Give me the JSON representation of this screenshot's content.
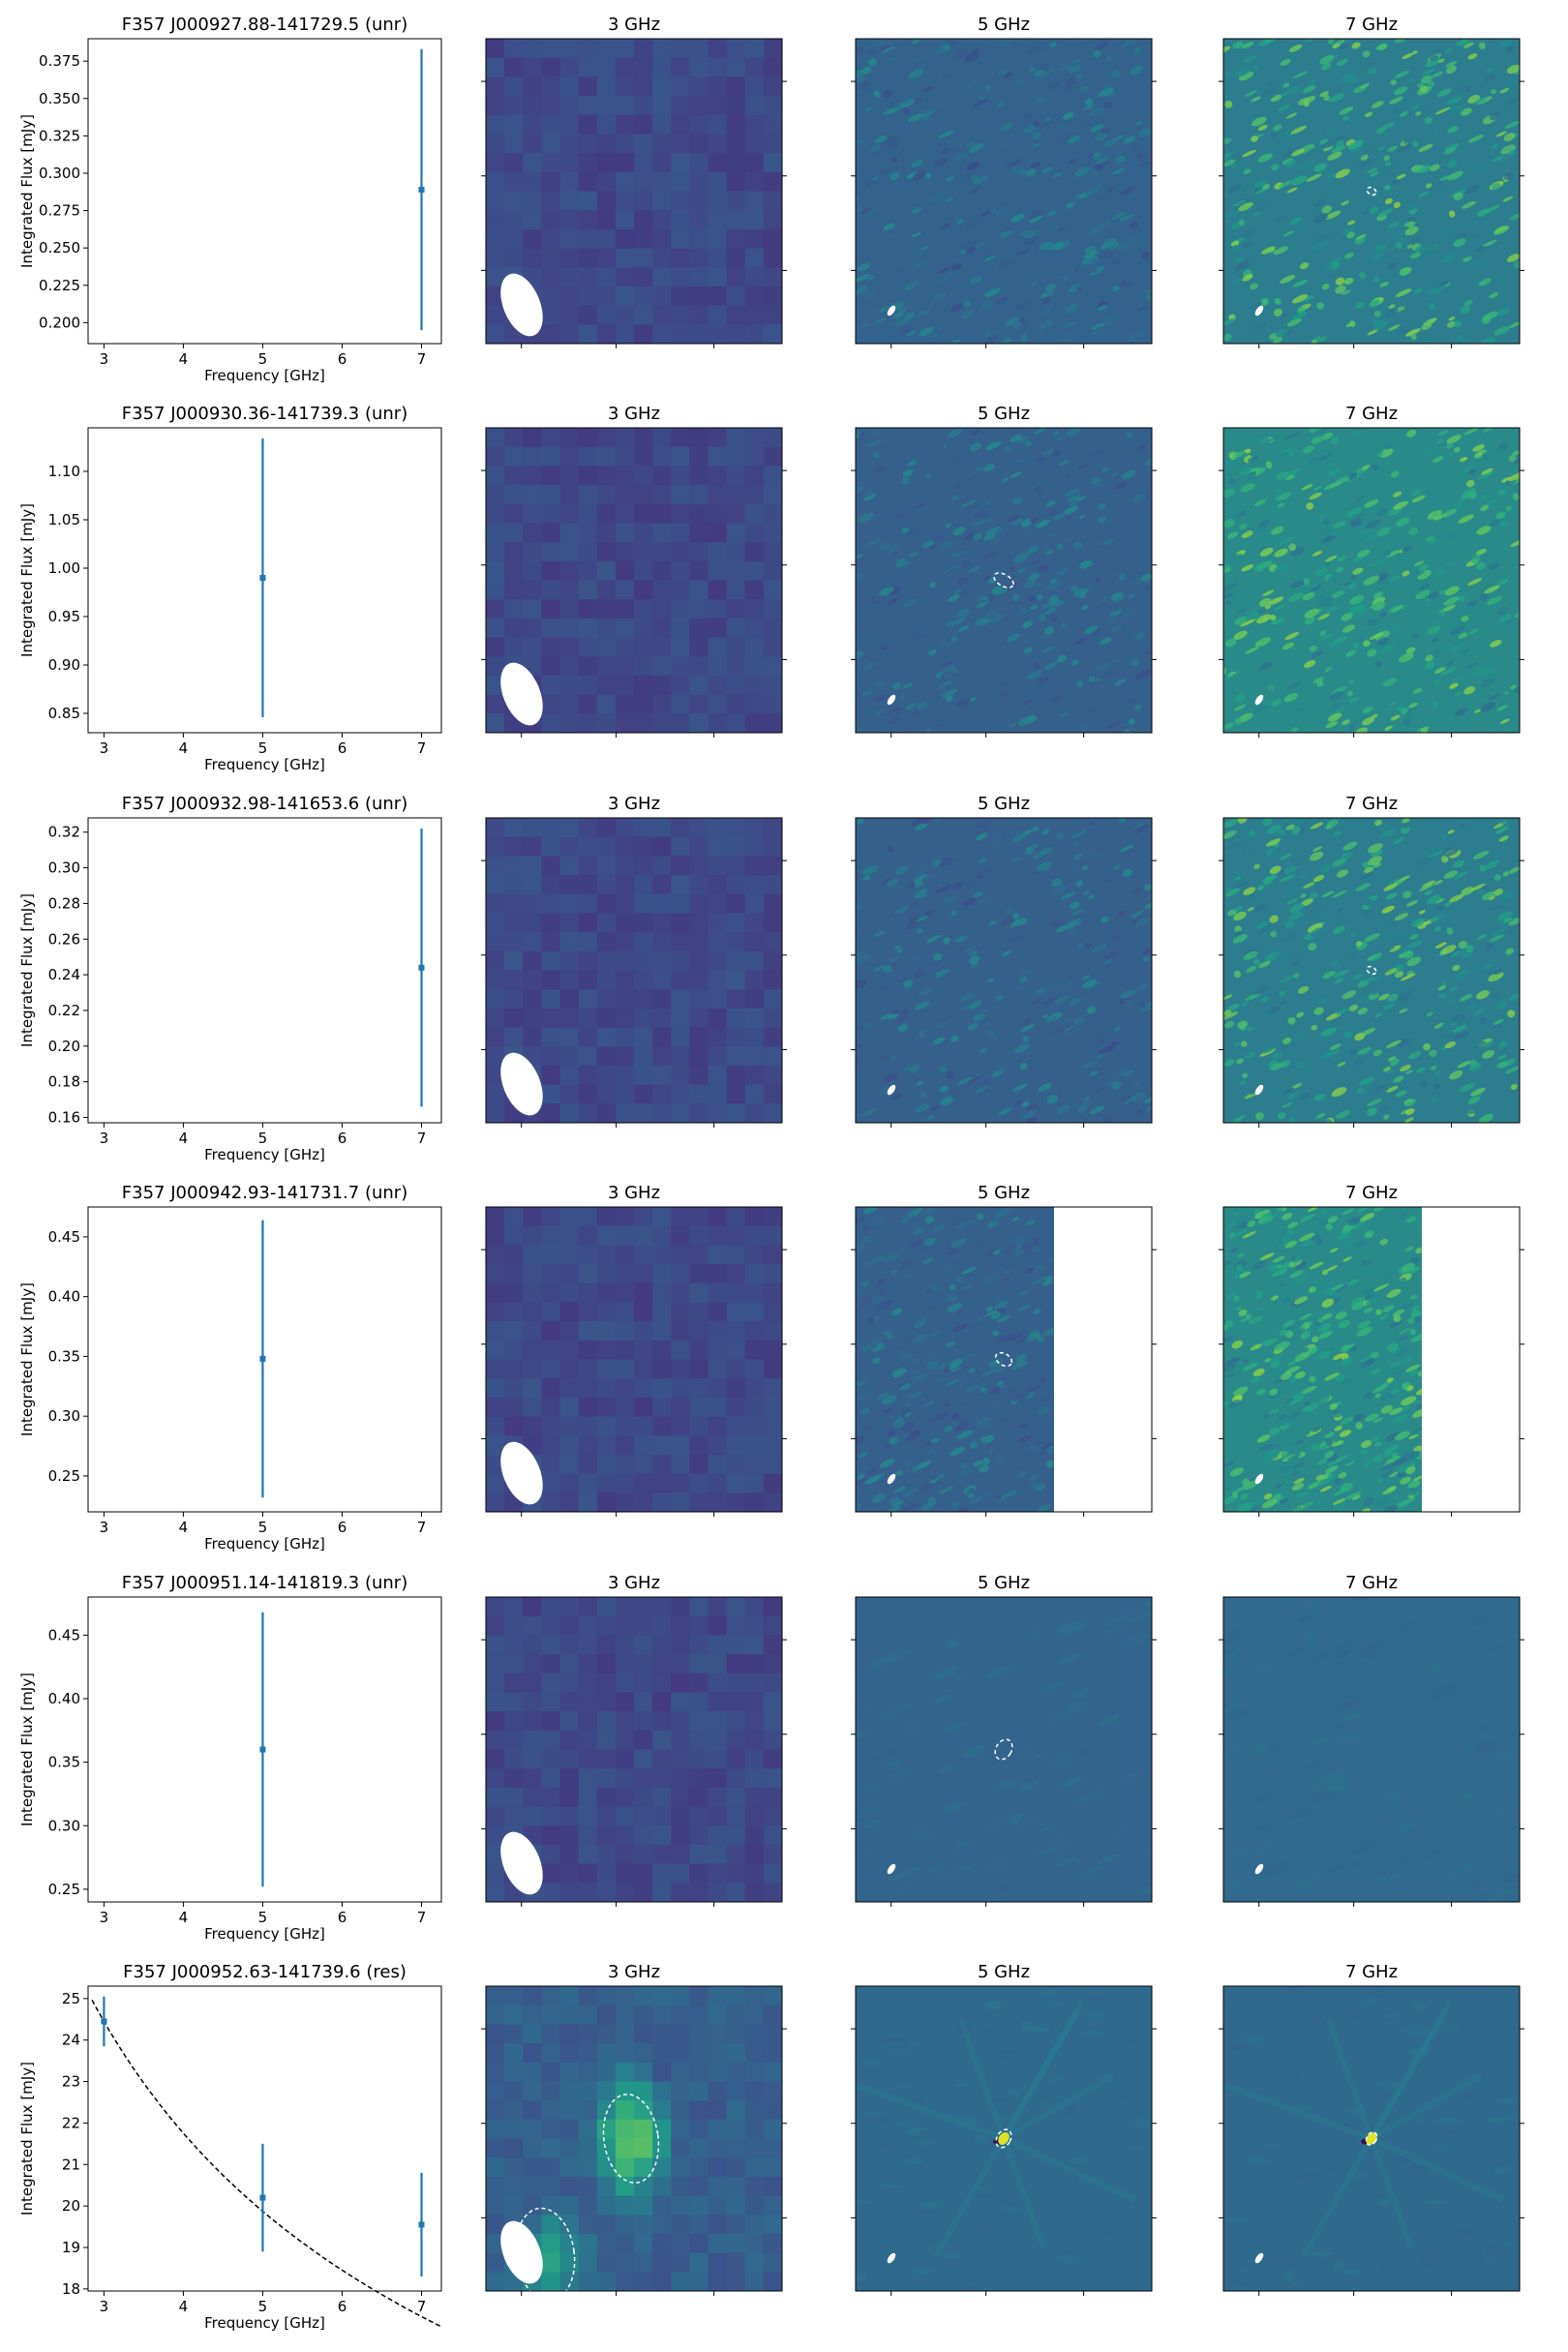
{
  "chart_data": [
    {
      "type": "scatter",
      "title": "F357 J000927.88-141729.5 (unr)",
      "xlabel": "Frequency [GHz]",
      "ylabel": "Integrated Flux [mJy]",
      "xlim": [
        2.8,
        7.25
      ],
      "ylim": [
        0.186,
        0.39
      ],
      "xticks": [
        3,
        4,
        5,
        6,
        7
      ],
      "yticks": [
        0.2,
        0.225,
        0.25,
        0.275,
        0.3,
        0.325,
        0.35,
        0.375
      ],
      "ytick_labels": [
        "0.200",
        "0.225",
        "0.250",
        "0.275",
        "0.300",
        "0.325",
        "0.350",
        "0.375"
      ],
      "points": [
        {
          "x": 7,
          "y": 0.289,
          "yerr_low": 0.195,
          "yerr_high": 0.383
        }
      ],
      "fit": null,
      "images": [
        {
          "title": "3 GHz",
          "style": "blocky",
          "base": "#43508a",
          "clipped": false,
          "ellipses": []
        },
        {
          "title": "5 GHz",
          "style": "speckle",
          "base": "#33628d",
          "clipped": false,
          "ellipses": []
        },
        {
          "title": "7 GHz",
          "style": "speckle-bright",
          "base": "#2c7e8e",
          "clipped": false,
          "ellipses": [
            {
              "fx": 0.5,
              "fy": 0.5,
              "rx": 5,
              "ry": 3.5
            }
          ]
        }
      ]
    },
    {
      "type": "scatter",
      "title": "F357 J000930.36-141739.3 (unr)",
      "xlabel": "Frequency [GHz]",
      "ylabel": "Integrated Flux [mJy]",
      "xlim": [
        2.8,
        7.25
      ],
      "ylim": [
        0.83,
        1.145
      ],
      "xticks": [
        3,
        4,
        5,
        6,
        7
      ],
      "yticks": [
        0.85,
        0.9,
        0.95,
        1.0,
        1.05,
        1.1
      ],
      "ytick_labels": [
        "0.85",
        "0.90",
        "0.95",
        "1.00",
        "1.05",
        "1.10"
      ],
      "points": [
        {
          "x": 5,
          "y": 0.99,
          "yerr_low": 0.846,
          "yerr_high": 1.134
        }
      ],
      "fit": null,
      "images": [
        {
          "title": "3 GHz",
          "style": "blocky",
          "base": "#46407f",
          "clipped": false,
          "ellipses": []
        },
        {
          "title": "5 GHz",
          "style": "speckle",
          "base": "#35608c",
          "clipped": false,
          "ellipses": [
            {
              "fx": 0.5,
              "fy": 0.5,
              "rx": 11,
              "ry": 6
            }
          ]
        },
        {
          "title": "7 GHz",
          "style": "speckle-bright",
          "base": "#2a8a8a",
          "clipped": false,
          "ellipses": []
        }
      ]
    },
    {
      "type": "scatter",
      "title": "F357 J000932.98-141653.6 (unr)",
      "xlabel": "Frequency [GHz]",
      "ylabel": "Integrated Flux [mJy]",
      "xlim": [
        2.8,
        7.25
      ],
      "ylim": [
        0.157,
        0.328
      ],
      "xticks": [
        3,
        4,
        5,
        6,
        7
      ],
      "yticks": [
        0.16,
        0.18,
        0.2,
        0.22,
        0.24,
        0.26,
        0.28,
        0.3,
        0.32
      ],
      "ytick_labels": [
        "0.16",
        "0.18",
        "0.20",
        "0.22",
        "0.24",
        "0.26",
        "0.28",
        "0.30",
        "0.32"
      ],
      "points": [
        {
          "x": 7,
          "y": 0.244,
          "yerr_low": 0.166,
          "yerr_high": 0.322
        }
      ],
      "fit": null,
      "images": [
        {
          "title": "3 GHz",
          "style": "blocky",
          "base": "#3f4d88",
          "clipped": false,
          "ellipses": []
        },
        {
          "title": "5 GHz",
          "style": "speckle",
          "base": "#35608c",
          "clipped": false,
          "ellipses": []
        },
        {
          "title": "7 GHz",
          "style": "speckle-bright",
          "base": "#2c7e8e",
          "clipped": false,
          "ellipses": [
            {
              "fx": 0.5,
              "fy": 0.5,
              "rx": 5,
              "ry": 3.5
            }
          ]
        }
      ]
    },
    {
      "type": "scatter",
      "title": "F357 J000942.93-141731.7 (unr)",
      "xlabel": "Frequency [GHz]",
      "ylabel": "Integrated Flux [mJy]",
      "xlim": [
        2.8,
        7.25
      ],
      "ylim": [
        0.22,
        0.475
      ],
      "xticks": [
        3,
        4,
        5,
        6,
        7
      ],
      "yticks": [
        0.25,
        0.3,
        0.35,
        0.4,
        0.45
      ],
      "ytick_labels": [
        "0.25",
        "0.30",
        "0.35",
        "0.40",
        "0.45"
      ],
      "points": [
        {
          "x": 5,
          "y": 0.348,
          "yerr_low": 0.232,
          "yerr_high": 0.464
        }
      ],
      "fit": null,
      "images": [
        {
          "title": "3 GHz",
          "style": "blocky",
          "base": "#44417f",
          "clipped": false,
          "ellipses": []
        },
        {
          "title": "5 GHz",
          "style": "speckle",
          "base": "#36608c",
          "clipped": true,
          "ellipses": [
            {
              "fx": 0.5,
              "fy": 0.5,
              "rx": 9,
              "ry": 6
            }
          ]
        },
        {
          "title": "7 GHz",
          "style": "speckle-bright",
          "base": "#2a8a8a",
          "clipped": true,
          "ellipses": []
        }
      ]
    },
    {
      "type": "scatter",
      "title": "F357 J000951.14-141819.3 (unr)",
      "xlabel": "Frequency [GHz]",
      "ylabel": "Integrated Flux [mJy]",
      "xlim": [
        2.8,
        7.25
      ],
      "ylim": [
        0.24,
        0.48
      ],
      "xticks": [
        3,
        4,
        5,
        6,
        7
      ],
      "yticks": [
        0.25,
        0.3,
        0.35,
        0.4,
        0.45
      ],
      "ytick_labels": [
        "0.25",
        "0.30",
        "0.35",
        "0.40",
        "0.45"
      ],
      "points": [
        {
          "x": 5,
          "y": 0.36,
          "yerr_low": 0.252,
          "yerr_high": 0.468
        }
      ],
      "fit": null,
      "images": [
        {
          "title": "3 GHz",
          "style": "blocky",
          "base": "#45417f",
          "clipped": false,
          "ellipses": []
        },
        {
          "title": "5 GHz",
          "style": "smooth",
          "base": "#32648d",
          "clipped": false,
          "ellipses": [
            {
              "fx": 0.5,
              "fy": 0.5,
              "rx": 8,
              "ry": 11
            }
          ]
        },
        {
          "title": "7 GHz",
          "style": "smooth",
          "base": "#316a8e",
          "clipped": false,
          "ellipses": []
        }
      ]
    },
    {
      "type": "scatter",
      "title": "F357 J000952.63-141739.6 (res)",
      "xlabel": "Frequency [GHz]",
      "ylabel": "Integrated Flux [mJy]",
      "xlim": [
        2.8,
        7.25
      ],
      "ylim": [
        17.95,
        25.3
      ],
      "xticks": [
        3,
        4,
        5,
        6,
        7
      ],
      "yticks": [
        18,
        19,
        20,
        21,
        22,
        23,
        24,
        25
      ],
      "ytick_labels": [
        "18",
        "19",
        "20",
        "21",
        "22",
        "23",
        "24",
        "25"
      ],
      "points": [
        {
          "x": 3,
          "y": 24.45,
          "yerr_low": 23.85,
          "yerr_high": 25.05
        },
        {
          "x": 5,
          "y": 20.2,
          "yerr_low": 18.9,
          "yerr_high": 21.5
        },
        {
          "x": 7,
          "y": 19.55,
          "yerr_low": 18.3,
          "yerr_high": 20.8
        }
      ],
      "fit": {
        "type": "power-law",
        "norm": 24.45,
        "ref": 3,
        "index": -0.406,
        "x_range": [
          2.85,
          7.25
        ]
      },
      "images": [
        {
          "title": "3 GHz",
          "style": "blocky-source",
          "base": "#3f5a8b",
          "clipped": false,
          "ellipses": [
            {
              "fx": 0.49,
              "fy": 0.5,
              "rx": 28,
              "ry": 46
            },
            {
              "fx": 0.2,
              "fy": 0.88,
              "rx": 30,
              "ry": 48
            }
          ]
        },
        {
          "title": "5 GHz",
          "style": "source",
          "base": "#2f6a8e",
          "clipped": false,
          "ellipses": [
            {
              "fx": 0.5,
              "fy": 0.5,
              "rx": 7,
              "ry": 10
            }
          ]
        },
        {
          "title": "7 GHz",
          "style": "source",
          "base": "#2f6a8e",
          "clipped": false,
          "ellipses": [
            {
              "fx": 0.5,
              "fy": 0.5,
              "rx": 5,
              "ry": 7
            }
          ]
        }
      ]
    }
  ]
}
